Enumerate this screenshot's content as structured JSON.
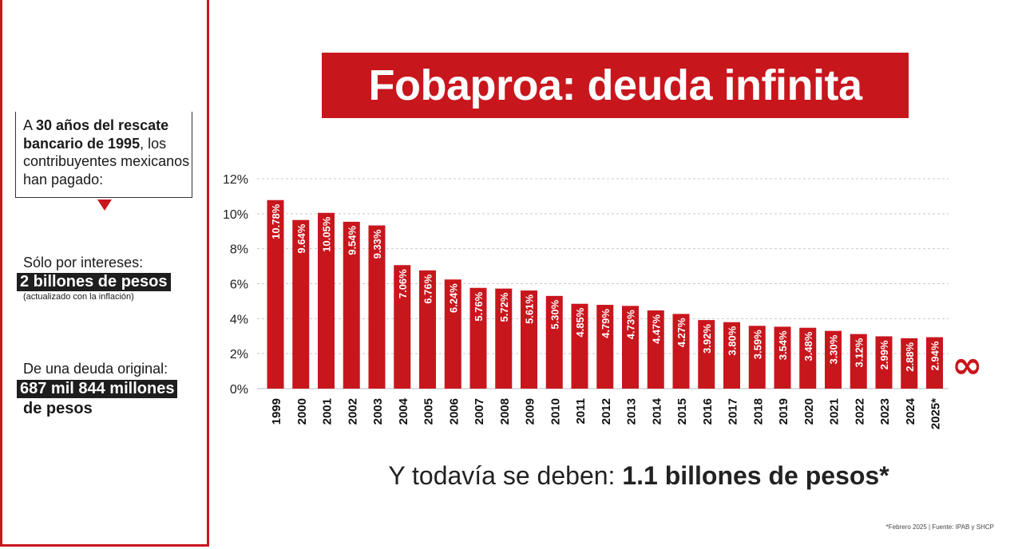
{
  "title": "Fobaproa: deuda infinita",
  "intro": {
    "prefix": "A ",
    "bold": "30 años del rescate bancario de 1995",
    "suffix": ", los contribuyentes mexicanos han pagado:"
  },
  "interests": {
    "label": "Sólo por intereses:",
    "amount": "2 billones de pesos",
    "note": "(actualizado con la inflación)"
  },
  "original_debt": {
    "label": "De una deuda original:",
    "amount": "687 mil 844 millones",
    "amount_line2": "de pesos"
  },
  "summary": {
    "prefix": "Y todavía se deben: ",
    "bold": "1.1 billones de pesos*"
  },
  "footnote": "*Febrero  2025   |   Fuente: IPAB y SHCP",
  "infinity_symbol": "∞",
  "colors": {
    "accent": "#c8161d",
    "dark": "#1e1e1e"
  },
  "chart_data": {
    "type": "bar",
    "title": "",
    "xlabel": "",
    "ylabel": "",
    "ylim": [
      0,
      12
    ],
    "yticks": [
      "0%",
      "2%",
      "4%",
      "6%",
      "8%",
      "10%",
      "12%"
    ],
    "grid": true,
    "categories": [
      "1999",
      "2000",
      "2001",
      "2002",
      "2003",
      "2004",
      "2005",
      "2006",
      "2007",
      "2008",
      "2009",
      "2010",
      "2011",
      "2012",
      "2013",
      "2014",
      "2015",
      "2016",
      "2017",
      "2018",
      "2019",
      "2020",
      "2021",
      "2022",
      "2023",
      "2024",
      "2025*"
    ],
    "values": [
      10.78,
      9.64,
      10.05,
      9.54,
      9.33,
      7.06,
      6.76,
      6.24,
      5.76,
      5.72,
      5.61,
      5.3,
      4.85,
      4.79,
      4.73,
      4.47,
      4.27,
      3.92,
      3.8,
      3.59,
      3.54,
      3.48,
      3.3,
      3.12,
      2.99,
      2.88,
      2.94
    ],
    "data_labels": [
      "10.78%",
      "9.64%",
      "10.05%",
      "9.54%",
      "9.33%",
      "7.06%",
      "6.76%",
      "6.24%",
      "5.76%",
      "5.72%",
      "5.61%",
      "5.30%",
      "4.85%",
      "4.79%",
      "4.73%",
      "4.47%",
      "4.27%",
      "3.92%",
      "3.80%",
      "3.59%",
      "3.54%",
      "3.48%",
      "3.30%",
      "3.12%",
      "2.99%",
      "2.88%",
      "2.94%"
    ]
  }
}
